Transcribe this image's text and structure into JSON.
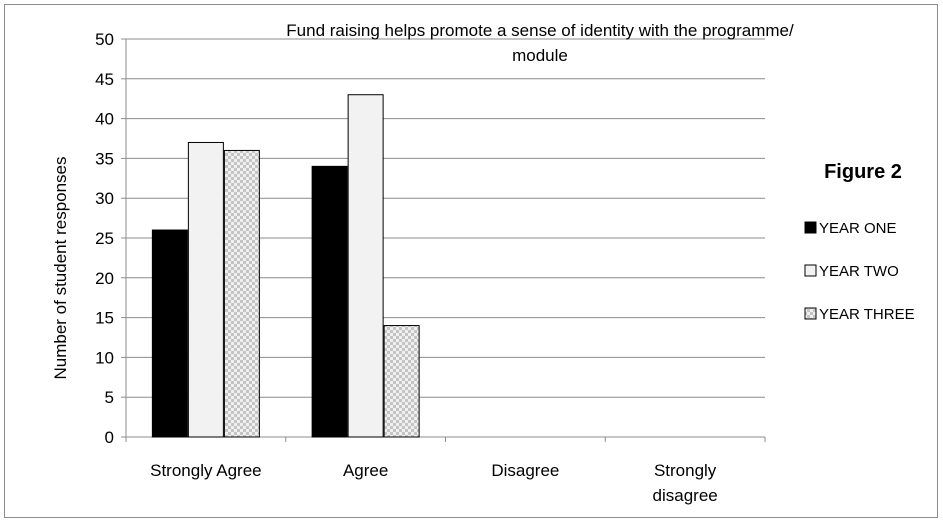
{
  "chart_data": {
    "type": "bar",
    "title": "Fund raising helps promote a sense of identity with the programme/ module",
    "title_lines": [
      "Fund raising helps promote a sense of identity with the programme/",
      "module"
    ],
    "annotation": "Figure 2",
    "xlabel": "",
    "ylabel": "Number of student responses",
    "ylim": [
      0,
      50
    ],
    "yticks": [
      0,
      5,
      10,
      15,
      20,
      25,
      30,
      35,
      40,
      45,
      50
    ],
    "grid": true,
    "legend_position": "right",
    "categories": [
      "Strongly Agree",
      "Agree",
      "Disagree",
      "Strongly disagree"
    ],
    "category_lines": [
      [
        "Strongly Agree"
      ],
      [
        "Agree"
      ],
      [
        "Disagree"
      ],
      [
        "Strongly",
        "disagree"
      ]
    ],
    "series": [
      {
        "name": "YEAR ONE",
        "values": [
          26,
          34,
          0,
          0
        ],
        "color": "#000000",
        "fill": "solid"
      },
      {
        "name": "YEAR TWO",
        "values": [
          37,
          43,
          0,
          0
        ],
        "color": "#f2f2f2",
        "fill": "solid"
      },
      {
        "name": "YEAR THREE",
        "values": [
          36,
          14,
          0,
          0
        ],
        "color": "#cfcfcf",
        "fill": "checker"
      }
    ]
  }
}
